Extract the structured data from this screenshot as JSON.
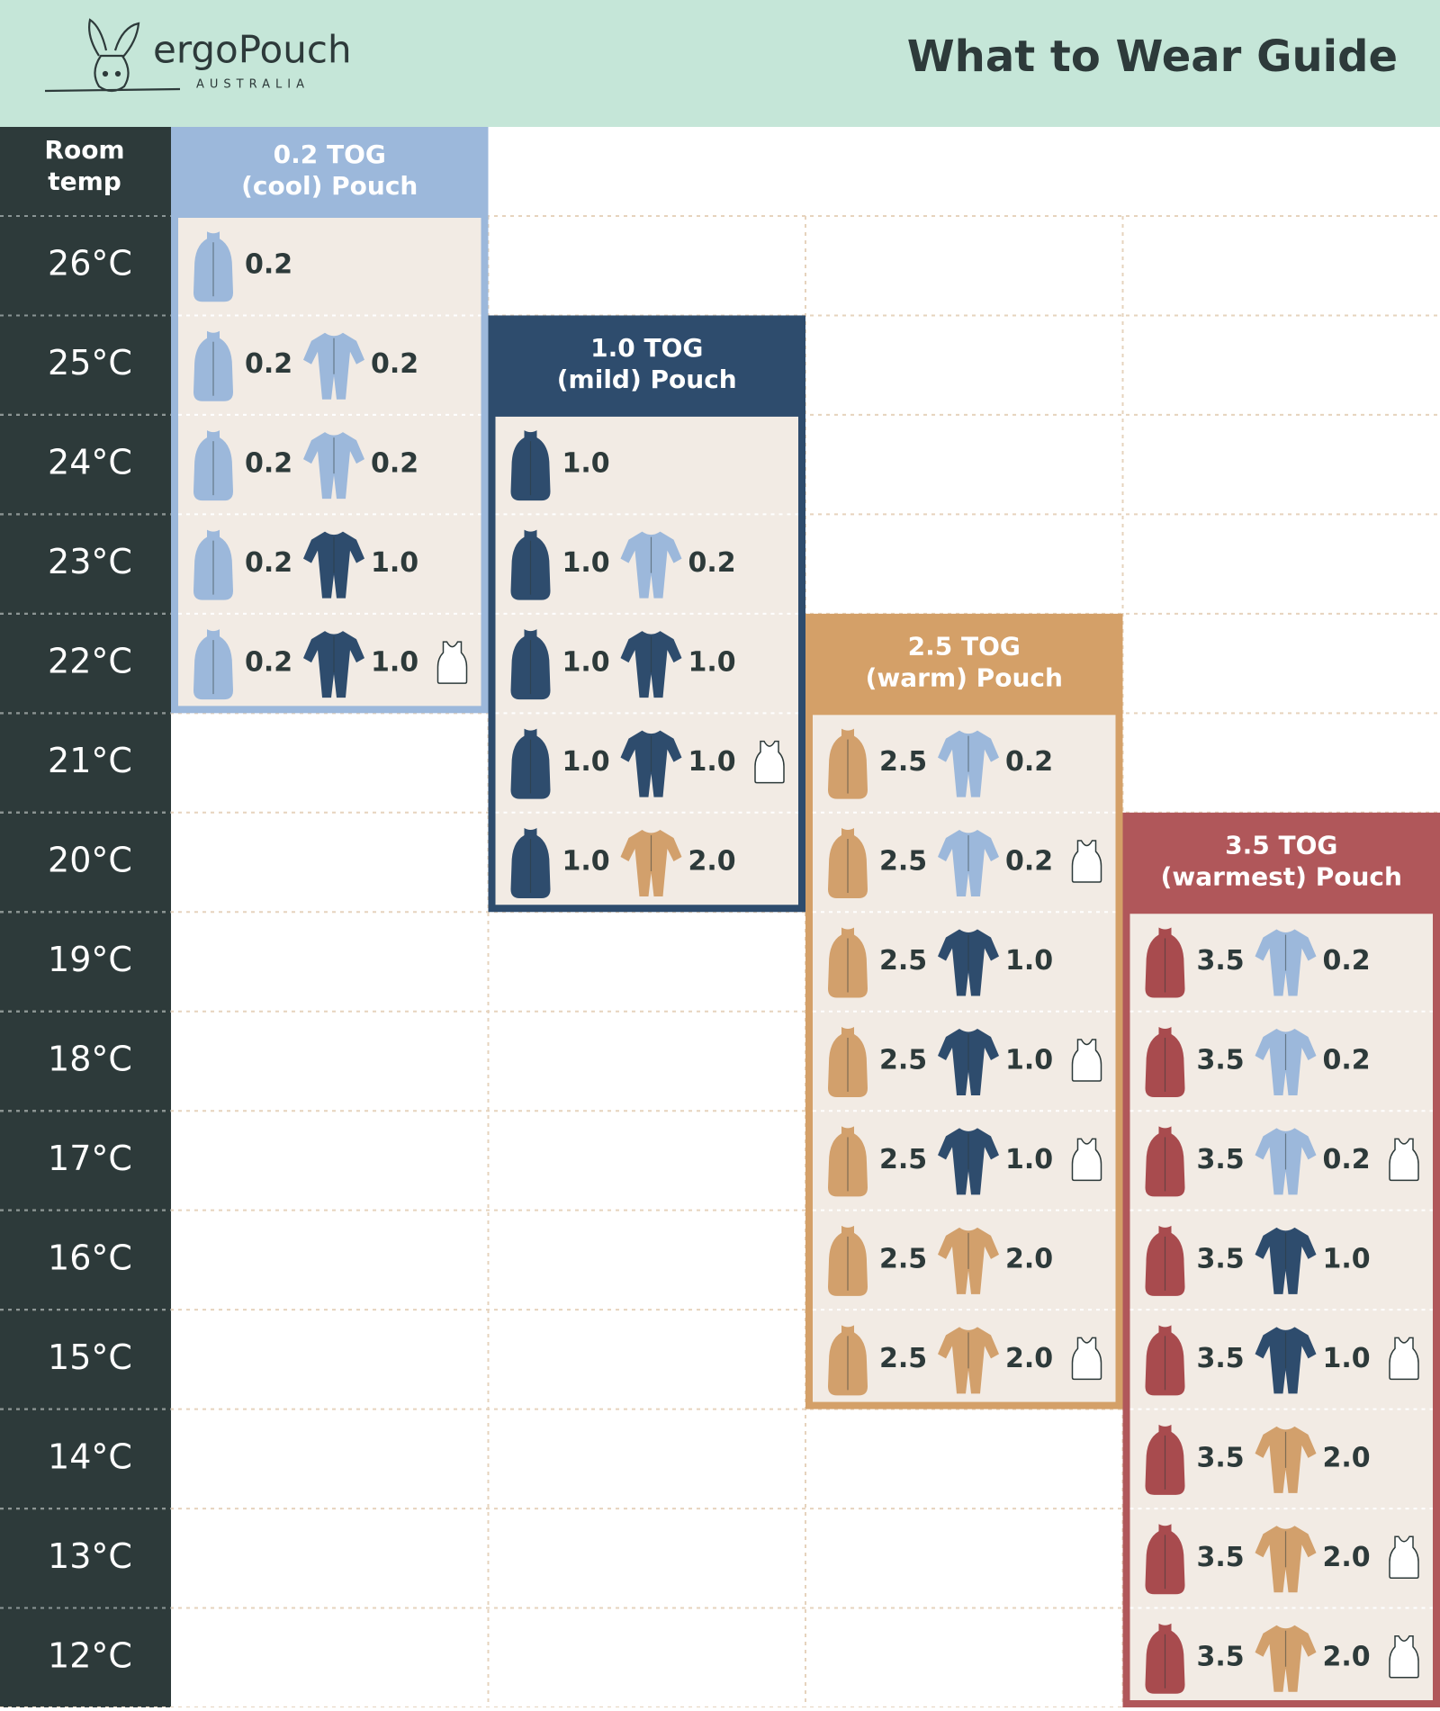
{
  "header": {
    "brand": "ergoPouch",
    "country": "AUSTRALIA",
    "title": "What to Wear Guide"
  },
  "row_label": [
    "Room",
    "temp"
  ],
  "temps": [
    "26°C",
    "25°C",
    "24°C",
    "23°C",
    "22°C",
    "21°C",
    "20°C",
    "19°C",
    "18°C",
    "17°C",
    "16°C",
    "15°C",
    "14°C",
    "13°C",
    "12°C"
  ],
  "icon_colors": {
    "0.2": "#9cb8db",
    "1.0": "#2e4c6d",
    "2.0": "#d2a06c",
    "2.5": "#d2a06c",
    "3.5": "#a84b4e"
  },
  "columns": [
    {
      "title": [
        "0.2 TOG",
        "(cool) Pouch"
      ],
      "color": "#9cb8db",
      "cells": [
        {
          "pouch": "0.2"
        },
        {
          "pouch": "0.2",
          "suit": "0.2"
        },
        {
          "pouch": "0.2",
          "suit": "0.2"
        },
        {
          "pouch": "0.2",
          "suit": "1.0"
        },
        {
          "pouch": "0.2",
          "suit": "1.0",
          "singlet": true
        },
        null,
        null,
        null,
        null,
        null,
        null,
        null,
        null,
        null,
        null
      ]
    },
    {
      "title": [
        "1.0 TOG",
        "(mild) Pouch"
      ],
      "color": "#2e4c6d",
      "cells": [
        null,
        null,
        {
          "pouch": "1.0"
        },
        {
          "pouch": "1.0",
          "suit": "0.2"
        },
        {
          "pouch": "1.0",
          "suit": "1.0"
        },
        {
          "pouch": "1.0",
          "suit": "1.0",
          "singlet": true
        },
        {
          "pouch": "1.0",
          "suit": "2.0"
        },
        null,
        null,
        null,
        null,
        null,
        null,
        null,
        null
      ]
    },
    {
      "title": [
        "2.5 TOG",
        "(warm) Pouch"
      ],
      "color": "#d4a068",
      "cells": [
        null,
        null,
        null,
        null,
        null,
        {
          "pouch": "2.5",
          "suit": "0.2"
        },
        {
          "pouch": "2.5",
          "suit": "0.2",
          "singlet": true
        },
        {
          "pouch": "2.5",
          "suit": "1.0"
        },
        {
          "pouch": "2.5",
          "suit": "1.0",
          "singlet": true
        },
        {
          "pouch": "2.5",
          "suit": "1.0",
          "singlet": true
        },
        {
          "pouch": "2.5",
          "suit": "2.0"
        },
        {
          "pouch": "2.5",
          "suit": "2.0",
          "singlet": true
        },
        null,
        null,
        null
      ]
    },
    {
      "title": [
        "3.5 TOG",
        "(warmest) Pouch"
      ],
      "color": "#b0575a",
      "cells": [
        null,
        null,
        null,
        null,
        null,
        null,
        null,
        {
          "pouch": "3.5",
          "suit": "0.2"
        },
        {
          "pouch": "3.5",
          "suit": "0.2"
        },
        {
          "pouch": "3.5",
          "suit": "0.2",
          "singlet": true
        },
        {
          "pouch": "3.5",
          "suit": "1.0"
        },
        {
          "pouch": "3.5",
          "suit": "1.0",
          "singlet": true
        },
        {
          "pouch": "3.5",
          "suit": "2.0"
        },
        {
          "pouch": "3.5",
          "suit": "2.0",
          "singlet": true
        },
        {
          "pouch": "3.5",
          "suit": "2.0",
          "singlet": true
        }
      ]
    }
  ]
}
